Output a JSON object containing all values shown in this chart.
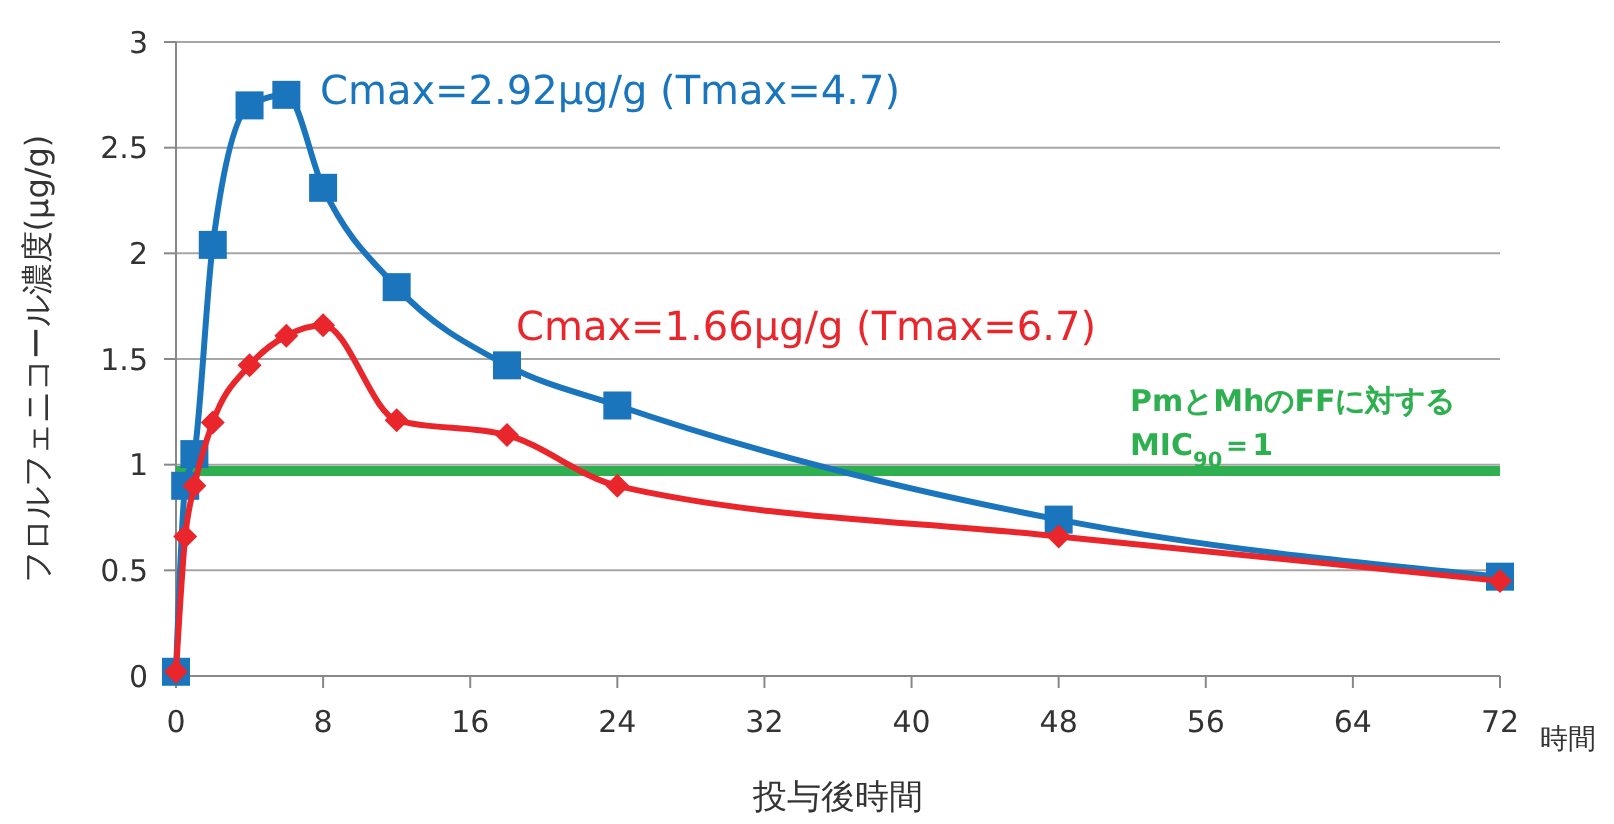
{
  "chart_data": {
    "type": "line",
    "xlabel": "投与後時間",
    "ylabel": "フロルフェニコール濃度(μg/g)",
    "annotations": [
      "Cmax=2.92μg/g (Tmax=4.7)",
      "Cmax=1.66μg/g (Tmax=6.7)",
      "時間"
    ],
    "x": [
      0,
      0.5,
      1,
      2,
      4,
      6,
      8,
      12,
      18,
      24,
      48,
      72
    ],
    "series": [
      {
        "color": "#1a75bc",
        "marker": "square",
        "values": [
          0.02,
          0.9,
          1.05,
          2.04,
          2.7,
          2.75,
          2.31,
          1.84,
          1.47,
          1.28,
          0.74,
          0.47
        ]
      },
      {
        "color": "#e8262b",
        "marker": "diamond",
        "values": [
          0.02,
          0.66,
          0.9,
          1.2,
          1.47,
          1.61,
          1.66,
          1.21,
          1.14,
          0.9,
          0.66,
          0.45
        ]
      }
    ],
    "xlim": [
      0,
      72
    ],
    "xticks": [
      0,
      8,
      16,
      24,
      32,
      40,
      48,
      56,
      64,
      72
    ],
    "ylim": [
      0,
      3
    ],
    "yticks": [
      0,
      0.5,
      1,
      1.5,
      2,
      2.5,
      3
    ],
    "grid": "y",
    "ref_lines": [
      {
        "axis": "y",
        "value": 0.97,
        "label": "PmとMhのFFに対する\nMIC$_{90}$＝1",
        "color": "#2eb050"
      }
    ]
  }
}
